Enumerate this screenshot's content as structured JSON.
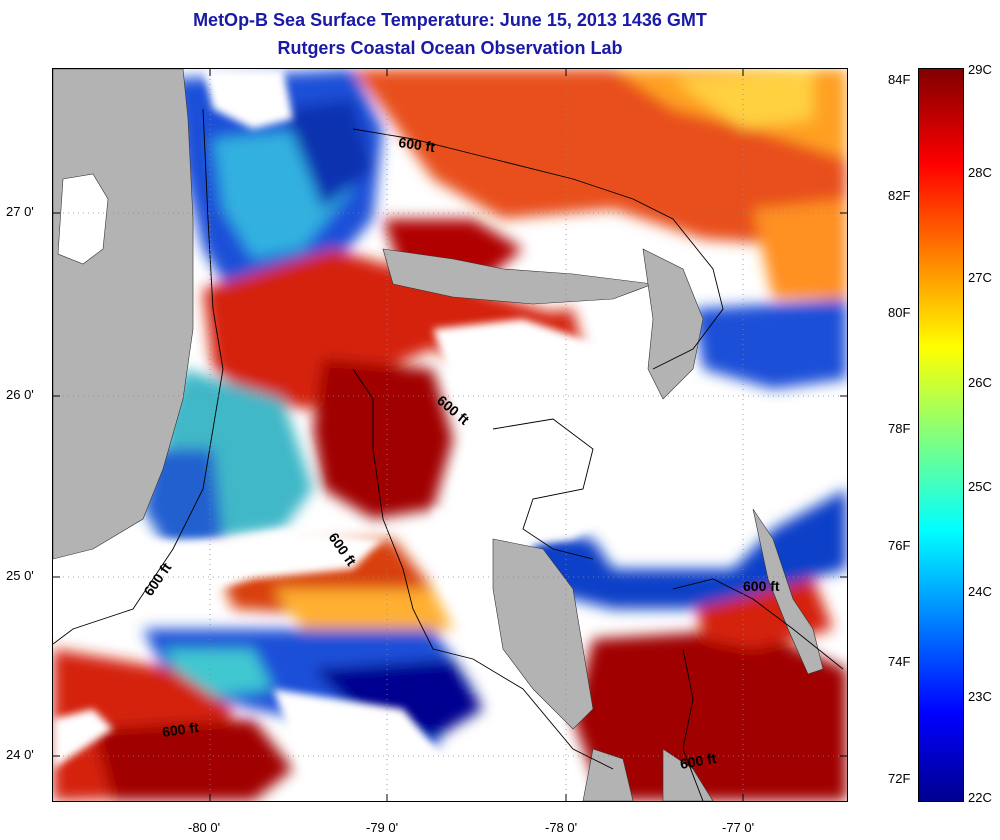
{
  "title": "MetOp-B Sea Surface Temperature:  June 15, 2013 1436 GMT",
  "subtitle": "Rutgers Coastal Ocean Observation Lab",
  "map": {
    "x_ticks": [
      "-80 0'",
      "-79 0'",
      "-78 0'",
      "-77 0'"
    ],
    "y_ticks": [
      "27 0'",
      "26 0'",
      "25 0'",
      "24 0'"
    ],
    "contour_label": "600 ft",
    "colors": {
      "land": "#b3b3b3",
      "cloud": "#ffffff",
      "warm": "#8b0000",
      "red": "#e31a1c",
      "orange": "#ff8c00",
      "yellow": "#ffd700",
      "cyan": "#20c0e0",
      "blue": "#1f4fd8",
      "dark_blue": "#00008b"
    }
  },
  "colorbar": {
    "fahrenheit_labels": [
      "84F",
      "82F",
      "80F",
      "78F",
      "76F",
      "74F",
      "72F"
    ],
    "celsius_labels": [
      "29C",
      "28C",
      "27C",
      "26C",
      "25C",
      "24C",
      "23C",
      "22C"
    ],
    "min_c": 22,
    "max_c": 29
  }
}
